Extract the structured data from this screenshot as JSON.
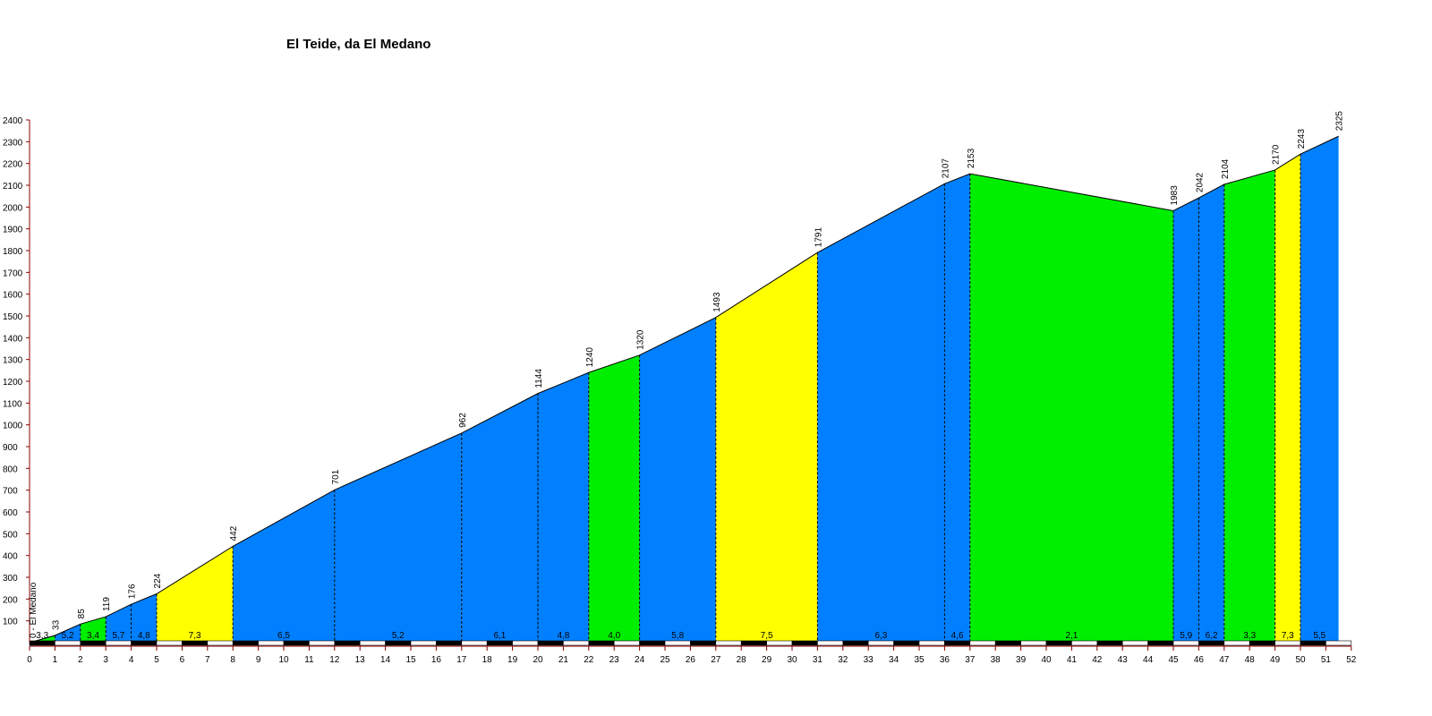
{
  "chart_data": {
    "type": "area",
    "title": "El Teide, da El Medano",
    "start_label": "0 - El Medano",
    "xlabel": "",
    "ylabel": "",
    "xlim": [
      0,
      52
    ],
    "ylim": [
      0,
      2400
    ],
    "x_ticks": [
      0,
      1,
      2,
      3,
      4,
      5,
      6,
      7,
      8,
      9,
      10,
      11,
      12,
      13,
      14,
      15,
      16,
      17,
      18,
      19,
      20,
      21,
      22,
      23,
      24,
      25,
      26,
      27,
      28,
      29,
      30,
      31,
      32,
      33,
      34,
      35,
      36,
      37,
      38,
      39,
      40,
      41,
      42,
      43,
      44,
      45,
      46,
      47,
      48,
      49,
      50,
      51,
      52
    ],
    "y_ticks": [
      100,
      200,
      300,
      400,
      500,
      600,
      700,
      800,
      900,
      1000,
      1100,
      1200,
      1300,
      1400,
      1500,
      1600,
      1700,
      1800,
      1900,
      2000,
      2100,
      2200,
      2300,
      2400
    ],
    "profile": [
      {
        "km": 0,
        "elev": 0
      },
      {
        "km": 1,
        "elev": 33
      },
      {
        "km": 2,
        "elev": 85
      },
      {
        "km": 3,
        "elev": 119
      },
      {
        "km": 4,
        "elev": 176
      },
      {
        "km": 5,
        "elev": 224
      },
      {
        "km": 8,
        "elev": 442
      },
      {
        "km": 12,
        "elev": 701
      },
      {
        "km": 17,
        "elev": 962
      },
      {
        "km": 20,
        "elev": 1144
      },
      {
        "km": 22,
        "elev": 1240
      },
      {
        "km": 24,
        "elev": 1320
      },
      {
        "km": 27,
        "elev": 1493
      },
      {
        "km": 31,
        "elev": 1791
      },
      {
        "km": 36,
        "elev": 2107
      },
      {
        "km": 37,
        "elev": 2153
      },
      {
        "km": 45,
        "elev": 1983
      },
      {
        "km": 46,
        "elev": 2042
      },
      {
        "km": 47,
        "elev": 2104
      },
      {
        "km": 49,
        "elev": 2170
      },
      {
        "km": 50,
        "elev": 2243
      },
      {
        "km": 51.5,
        "elev": 2325
      }
    ],
    "elevation_labels": [
      "33",
      "85",
      "119",
      "176",
      "224",
      "442",
      "701",
      "962",
      "1144",
      "1240",
      "1320",
      "1493",
      "1791",
      "2107",
      "2153",
      "1983",
      "2042",
      "2104",
      "2170",
      "2243",
      "2325"
    ],
    "segments": [
      {
        "gradient": "3,3",
        "color": "#00ee00"
      },
      {
        "gradient": "5,2",
        "color": "#0080ff"
      },
      {
        "gradient": "3,4",
        "color": "#00ee00"
      },
      {
        "gradient": "5,7",
        "color": "#0080ff"
      },
      {
        "gradient": "4,8",
        "color": "#0080ff"
      },
      {
        "gradient": "7,3",
        "color": "#ffff00"
      },
      {
        "gradient": "6,5",
        "color": "#0080ff"
      },
      {
        "gradient": "5,2",
        "color": "#0080ff"
      },
      {
        "gradient": "6,1",
        "color": "#0080ff"
      },
      {
        "gradient": "4,8",
        "color": "#0080ff"
      },
      {
        "gradient": "4,0",
        "color": "#00ee00"
      },
      {
        "gradient": "5,8",
        "color": "#0080ff"
      },
      {
        "gradient": "7,5",
        "color": "#ffff00"
      },
      {
        "gradient": "6,3",
        "color": "#0080ff"
      },
      {
        "gradient": "4,6",
        "color": "#0080ff"
      },
      {
        "gradient": "2,1",
        "color": "#00ee00"
      },
      {
        "gradient": "5,9",
        "color": "#0080ff"
      },
      {
        "gradient": "6,2",
        "color": "#0080ff"
      },
      {
        "gradient": "3,3",
        "color": "#00ee00"
      },
      {
        "gradient": "7,3",
        "color": "#ffff00"
      },
      {
        "gradient": "5,5",
        "color": "#0080ff"
      }
    ],
    "grid": false,
    "legend": "none",
    "colors": {
      "axis": "#880000",
      "outline": "#000000",
      "scale_bar_dark": "#000000",
      "scale_bar_light": "#ffffff"
    }
  }
}
